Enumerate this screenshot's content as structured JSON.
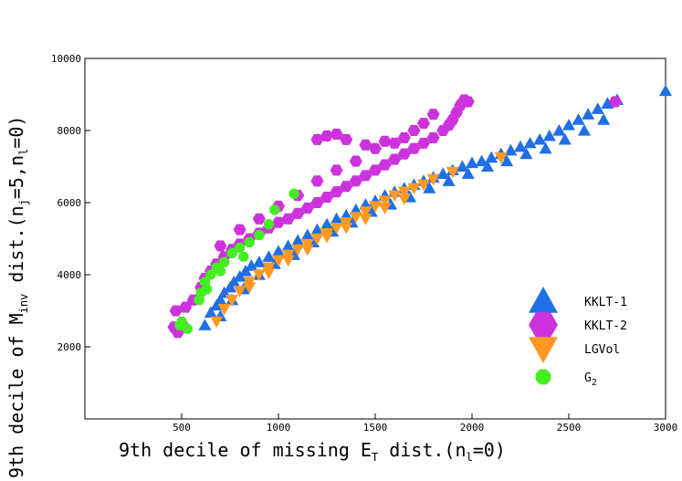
{
  "chart_data": {
    "type": "scatter",
    "xlabel": "9th decile of missing E_T dist.(n_l=0)",
    "ylabel": "9th decile of M_inv dist.(n_j=5,n_l=0)",
    "xlabel_parts": {
      "main": "9th decile of missing E",
      "sub1": "T",
      "mid": " dist.(n",
      "sub2": "l",
      "end": "=0)"
    },
    "ylabel_parts": {
      "main": "9th decile of M",
      "sub1": "inv",
      "mid": " dist.(n",
      "sub2": "j",
      "mid2": "=5,n",
      "sub3": "l",
      "end": "=0)"
    },
    "xlim": [
      0,
      3000
    ],
    "ylim": [
      0,
      10000
    ],
    "x_ticks": [
      500,
      1000,
      1500,
      2000,
      2500,
      3000
    ],
    "y_ticks": [
      2000,
      4000,
      6000,
      8000,
      10000
    ],
    "legend_position": "bottom-right",
    "series": [
      {
        "name": "KKLT-1",
        "marker": "triangle-up",
        "color": "#1f6fe6",
        "points": [
          [
            620,
            2600
          ],
          [
            650,
            2950
          ],
          [
            680,
            3150
          ],
          [
            700,
            3300
          ],
          [
            720,
            3500
          ],
          [
            750,
            3650
          ],
          [
            770,
            3800
          ],
          [
            800,
            3950
          ],
          [
            830,
            4100
          ],
          [
            860,
            4250
          ],
          [
            900,
            4350
          ],
          [
            950,
            4500
          ],
          [
            1000,
            4650
          ],
          [
            1050,
            4800
          ],
          [
            1100,
            4950
          ],
          [
            1150,
            5100
          ],
          [
            1200,
            5250
          ],
          [
            1250,
            5400
          ],
          [
            1300,
            5550
          ],
          [
            1350,
            5650
          ],
          [
            1400,
            5800
          ],
          [
            1450,
            5950
          ],
          [
            1500,
            6050
          ],
          [
            1550,
            6200
          ],
          [
            1600,
            6300
          ],
          [
            1650,
            6400
          ],
          [
            1700,
            6500
          ],
          [
            1750,
            6600
          ],
          [
            1800,
            6700
          ],
          [
            1850,
            6800
          ],
          [
            1900,
            6900
          ],
          [
            1950,
            7000
          ],
          [
            2000,
            7100
          ],
          [
            2050,
            7150
          ],
          [
            2100,
            7250
          ],
          [
            2150,
            7350
          ],
          [
            2200,
            7450
          ],
          [
            2250,
            7550
          ],
          [
            2300,
            7650
          ],
          [
            2350,
            7750
          ],
          [
            2400,
            7850
          ],
          [
            2450,
            8000
          ],
          [
            2500,
            8150
          ],
          [
            2550,
            8300
          ],
          [
            2600,
            8450
          ],
          [
            2650,
            8600
          ],
          [
            2700,
            8750
          ],
          [
            2750,
            8850
          ],
          [
            3000,
            9100
          ],
          [
            700,
            2850
          ],
          [
            760,
            3300
          ],
          [
            820,
            3600
          ],
          [
            900,
            4000
          ],
          [
            980,
            4300
          ],
          [
            1080,
            4550
          ],
          [
            1180,
            4900
          ],
          [
            1280,
            5200
          ],
          [
            1380,
            5450
          ],
          [
            1480,
            5750
          ],
          [
            1580,
            5950
          ],
          [
            1680,
            6150
          ],
          [
            1780,
            6400
          ],
          [
            1880,
            6600
          ],
          [
            1980,
            6800
          ],
          [
            2080,
            7000
          ],
          [
            2180,
            7150
          ],
          [
            2280,
            7350
          ],
          [
            2380,
            7500
          ],
          [
            2480,
            7750
          ],
          [
            2580,
            8000
          ],
          [
            2680,
            8300
          ]
        ]
      },
      {
        "name": "KKLT-2",
        "marker": "hexagon",
        "color": "#cc33dd",
        "points": [
          [
            460,
            2550
          ],
          [
            480,
            2400
          ],
          [
            500,
            2650
          ],
          [
            470,
            3000
          ],
          [
            520,
            3100
          ],
          [
            560,
            3300
          ],
          [
            600,
            3650
          ],
          [
            620,
            3900
          ],
          [
            650,
            4100
          ],
          [
            680,
            4300
          ],
          [
            720,
            4500
          ],
          [
            760,
            4700
          ],
          [
            800,
            4850
          ],
          [
            850,
            5000
          ],
          [
            900,
            5150
          ],
          [
            950,
            5300
          ],
          [
            1000,
            5450
          ],
          [
            1050,
            5550
          ],
          [
            1100,
            5700
          ],
          [
            1150,
            5850
          ],
          [
            1200,
            6000
          ],
          [
            1250,
            6150
          ],
          [
            1300,
            6300
          ],
          [
            1350,
            6450
          ],
          [
            1400,
            6600
          ],
          [
            1450,
            6750
          ],
          [
            1500,
            6900
          ],
          [
            1550,
            7050
          ],
          [
            1600,
            7200
          ],
          [
            1650,
            7350
          ],
          [
            1700,
            7500
          ],
          [
            1750,
            7650
          ],
          [
            1800,
            7800
          ],
          [
            1850,
            8000
          ],
          [
            1880,
            8150
          ],
          [
            1900,
            8300
          ],
          [
            1920,
            8500
          ],
          [
            1940,
            8700
          ],
          [
            1960,
            8850
          ],
          [
            1980,
            8800
          ],
          [
            1800,
            8450
          ],
          [
            1750,
            8200
          ],
          [
            1700,
            8000
          ],
          [
            1650,
            7800
          ],
          [
            1550,
            7700
          ],
          [
            1450,
            7600
          ],
          [
            1350,
            7750
          ],
          [
            1300,
            7900
          ],
          [
            1250,
            7850
          ],
          [
            1200,
            7750
          ],
          [
            1500,
            7500
          ],
          [
            1600,
            7650
          ],
          [
            1400,
            7150
          ],
          [
            1300,
            6900
          ],
          [
            1200,
            6600
          ],
          [
            1100,
            6200
          ],
          [
            1000,
            5900
          ],
          [
            900,
            5550
          ],
          [
            800,
            5250
          ],
          [
            700,
            4800
          ],
          [
            2740,
            8800
          ]
        ]
      },
      {
        "name": "LGVol",
        "marker": "triangle-down",
        "color": "#ff9922",
        "points": [
          [
            680,
            2700
          ],
          [
            720,
            3050
          ],
          [
            760,
            3300
          ],
          [
            800,
            3550
          ],
          [
            850,
            3800
          ],
          [
            900,
            4000
          ],
          [
            950,
            4200
          ],
          [
            1000,
            4400
          ],
          [
            1050,
            4550
          ],
          [
            1100,
            4700
          ],
          [
            1150,
            4850
          ],
          [
            1200,
            5000
          ],
          [
            1250,
            5150
          ],
          [
            1300,
            5300
          ],
          [
            1350,
            5450
          ],
          [
            1400,
            5600
          ],
          [
            1450,
            5750
          ],
          [
            1500,
            5900
          ],
          [
            1550,
            6050
          ],
          [
            1600,
            6200
          ],
          [
            1650,
            6300
          ],
          [
            1700,
            6400
          ],
          [
            1750,
            6500
          ],
          [
            1800,
            6650
          ],
          [
            1900,
            6850
          ],
          [
            2150,
            7250
          ],
          [
            1250,
            5050
          ],
          [
            1350,
            5300
          ],
          [
            1450,
            5550
          ],
          [
            1550,
            5850
          ],
          [
            1650,
            6100
          ],
          [
            1150,
            4700
          ],
          [
            1050,
            4400
          ],
          [
            950,
            4050
          ],
          [
            850,
            3650
          ]
        ]
      },
      {
        "name": "G2",
        "marker": "octagon",
        "color": "#44ee22",
        "points": [
          [
            500,
            2700
          ],
          [
            530,
            2500
          ],
          [
            490,
            2600
          ],
          [
            590,
            3300
          ],
          [
            600,
            3500
          ],
          [
            620,
            3800
          ],
          [
            650,
            4000
          ],
          [
            680,
            4200
          ],
          [
            720,
            4350
          ],
          [
            760,
            4600
          ],
          [
            800,
            4750
          ],
          [
            850,
            4900
          ],
          [
            900,
            5100
          ],
          [
            950,
            5400
          ],
          [
            980,
            5800
          ],
          [
            1080,
            6250
          ],
          [
            630,
            3600
          ],
          [
            700,
            4100
          ],
          [
            820,
            4500
          ]
        ]
      }
    ]
  }
}
